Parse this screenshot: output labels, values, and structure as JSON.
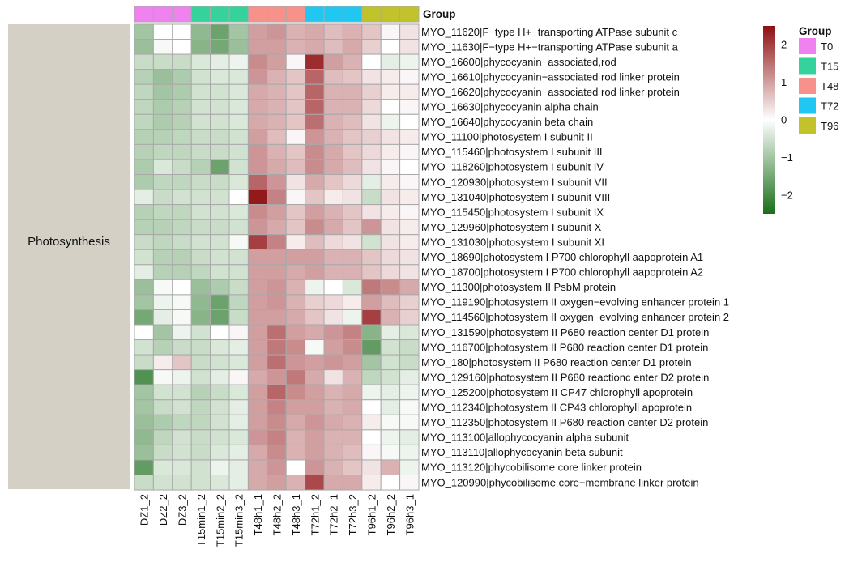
{
  "chart_data": {
    "type": "heatmap",
    "title": "",
    "xlabel": "",
    "ylabel": "",
    "row_group": "Photosynthesis",
    "group_header": "Group",
    "columns": [
      "DZ1_2",
      "DZ2_2",
      "DZ3_2",
      "T15min1_2",
      "T15min2_2",
      "T15min3_2",
      "T48h1_1",
      "T48h2_2",
      "T48h3_1",
      "T72h1_2",
      "T72h2_1",
      "T72h3_2",
      "T96h1_2",
      "T96h2_2",
      "T96h3_1"
    ],
    "column_groups": [
      "T0",
      "T0",
      "T0",
      "T15",
      "T15",
      "T15",
      "T48",
      "T48",
      "T48",
      "T72",
      "T72",
      "T72",
      "T96",
      "T96",
      "T96"
    ],
    "rows": [
      "MYO_11620|F−type H+−transporting ATPase subunit c",
      "MYO_11630|F−type H+−transporting ATPase subunit a",
      "MYO_16600|phycocyanin−associated,rod",
      "MYO_16610|phycocyanin−associated rod linker protein",
      "MYO_16620|phycocyanin−associated rod linker protein",
      "MYO_16630|phycocyanin alpha chain",
      "MYO_16640|phycocyanin beta chain",
      "MYO_11100|photosystem I subunit II",
      "MYO_115460|photosystem I subunit III",
      "MYO_118260|photosystem I subunit IV",
      "MYO_120930|photosystem I subunit VII",
      "MYO_131040|photosystem I subunit VIII",
      "MYO_115450|photosystem I subunit IX",
      "MYO_129960|photosystem I subunit X",
      "MYO_131030|photosystem I subunit XI",
      "MYO_18690|photosystem I P700 chlorophyll aapoprotein A1",
      "MYO_18700|photosystem I P700 chlorophyll aapoprotein A2",
      "MYO_11300|photosystem II PsbM protein",
      "MYO_119190|photosystem II oxygen−evolving enhancer protein 1",
      "MYO_114560|photosystem II oxygen−evolving enhancer protein 2",
      "MYO_131590|photosystem II P680 reaction center D1 protein",
      "MYO_116700|photosystem II P680 reaction center D1 protein",
      "MYO_180|photosystem II P680 reaction center D1 protein",
      "MYO_129160|photosystem II P680 reactionc enter D2  protein",
      "MYO_125200|photosystem II CP47 chlorophyll apoprotein",
      "MYO_112340|photosystem II CP43 chlorophyll apoprotein",
      "MYO_112350|photosystem II P680 reaction center D2 protein",
      "MYO_113100|allophycocyanin alpha subunit",
      "MYO_113110|allophycocyanin beta subunit",
      "MYO_113120|phycobilisome core linker protein",
      "MYO_120990|phycobilisome core−membrane linker protein"
    ],
    "values": [
      [
        -1.0,
        0.0,
        0.0,
        -1.2,
        -1.6,
        -1.0,
        1.0,
        1.1,
        0.8,
        0.9,
        0.7,
        0.8,
        0.6,
        0.1,
        0.3
      ],
      [
        -1.1,
        -0.1,
        0.0,
        -1.3,
        -1.5,
        -1.1,
        1.0,
        1.0,
        0.8,
        0.9,
        0.7,
        0.9,
        0.5,
        0.0,
        0.3
      ],
      [
        -0.6,
        -0.6,
        -0.6,
        -0.4,
        -0.3,
        -0.2,
        1.2,
        1.0,
        0.1,
        2.2,
        1.0,
        0.8,
        0.0,
        -0.3,
        -0.2
      ],
      [
        -0.8,
        -1.1,
        -0.9,
        -0.5,
        -0.4,
        -0.4,
        1.1,
        0.8,
        0.6,
        1.6,
        0.7,
        0.6,
        0.3,
        0.2,
        0.1
      ],
      [
        -0.7,
        -1.0,
        -0.9,
        -0.5,
        -0.5,
        -0.4,
        0.9,
        0.8,
        0.6,
        1.6,
        0.8,
        0.8,
        0.5,
        0.2,
        0.2
      ],
      [
        -0.7,
        -0.9,
        -0.8,
        -0.5,
        -0.5,
        -0.4,
        0.9,
        0.8,
        0.6,
        1.6,
        0.8,
        0.8,
        0.4,
        0.0,
        0.1
      ],
      [
        -0.7,
        -0.9,
        -0.8,
        -0.5,
        -0.5,
        -0.4,
        0.9,
        0.8,
        0.6,
        1.5,
        0.8,
        0.7,
        0.3,
        -0.2,
        0.0
      ],
      [
        -0.8,
        -0.8,
        -0.7,
        -0.6,
        -0.6,
        -0.5,
        1.0,
        0.7,
        0.1,
        1.1,
        0.8,
        0.6,
        0.5,
        0.3,
        0.2
      ],
      [
        -0.8,
        -0.7,
        -0.7,
        -0.6,
        -0.6,
        -0.5,
        1.1,
        0.8,
        0.6,
        1.2,
        0.9,
        0.6,
        0.4,
        0.2,
        0.1
      ],
      [
        -0.9,
        -0.4,
        -0.6,
        -0.8,
        -1.6,
        -0.5,
        1.1,
        0.9,
        0.7,
        1.2,
        0.9,
        0.7,
        0.3,
        0.1,
        0.0
      ],
      [
        -0.9,
        -0.7,
        -0.7,
        -0.6,
        -0.6,
        -0.4,
        1.6,
        1.1,
        0.3,
        0.9,
        0.6,
        0.4,
        -0.3,
        0.2,
        0.1
      ],
      [
        -0.3,
        -0.6,
        -0.5,
        -0.5,
        -0.5,
        0.0,
        2.4,
        1.3,
        0.1,
        0.6,
        0.2,
        0.3,
        -0.6,
        0.3,
        0.2
      ],
      [
        -0.8,
        -0.7,
        -0.7,
        -0.5,
        -0.5,
        -0.4,
        1.2,
        1.0,
        0.6,
        1.0,
        0.8,
        0.6,
        0.3,
        0.2,
        0.1
      ],
      [
        -0.8,
        -0.8,
        -0.7,
        -0.6,
        -0.6,
        -0.5,
        1.1,
        0.9,
        0.6,
        1.2,
        0.9,
        0.6,
        1.1,
        0.3,
        0.2
      ],
      [
        -0.6,
        -0.7,
        -0.6,
        -0.5,
        -0.5,
        -0.1,
        2.0,
        1.3,
        0.2,
        0.7,
        0.4,
        0.3,
        -0.5,
        0.3,
        0.2
      ],
      [
        -0.5,
        -0.8,
        -0.8,
        -0.6,
        -0.5,
        -0.5,
        1.0,
        1.0,
        1.0,
        1.0,
        0.8,
        0.8,
        0.6,
        0.4,
        0.3
      ],
      [
        -0.3,
        -0.8,
        -0.8,
        -0.7,
        -0.5,
        -0.5,
        1.0,
        1.0,
        0.9,
        1.0,
        0.8,
        0.8,
        0.6,
        0.4,
        0.3
      ],
      [
        -1.1,
        -0.1,
        0.0,
        -1.1,
        -0.9,
        -0.6,
        1.0,
        1.1,
        0.8,
        -0.2,
        0.0,
        -0.4,
        1.4,
        1.2,
        0.9
      ],
      [
        -1.0,
        -0.2,
        -0.1,
        -1.2,
        -1.6,
        -0.7,
        1.0,
        1.1,
        0.8,
        0.5,
        0.4,
        0.2,
        1.0,
        0.7,
        0.5
      ],
      [
        -1.5,
        -0.3,
        -0.1,
        -1.3,
        -1.6,
        -0.6,
        1.0,
        1.0,
        0.9,
        0.6,
        0.3,
        -0.2,
        2.0,
        0.8,
        0.5
      ],
      [
        0.0,
        -1.0,
        -0.2,
        -0.5,
        0.0,
        0.1,
        1.0,
        1.5,
        1.0,
        0.9,
        1.1,
        1.3,
        -1.3,
        -0.3,
        -0.4
      ],
      [
        -0.5,
        -0.8,
        -0.6,
        -0.6,
        -0.4,
        -0.3,
        1.0,
        1.4,
        1.2,
        -0.1,
        1.0,
        1.2,
        -1.7,
        -0.5,
        -0.6
      ],
      [
        -0.6,
        0.2,
        0.6,
        -0.6,
        -0.5,
        -0.4,
        1.0,
        1.5,
        1.1,
        1.0,
        1.1,
        1.0,
        -1.0,
        -0.5,
        -0.6
      ],
      [
        -1.9,
        -0.1,
        -0.2,
        -0.5,
        -0.3,
        0.1,
        0.9,
        1.1,
        1.4,
        0.9,
        0.3,
        0.8,
        -0.7,
        -0.5,
        -0.3
      ],
      [
        -1.0,
        -0.5,
        -0.5,
        -0.8,
        -0.6,
        -0.4,
        1.0,
        1.6,
        1.2,
        1.0,
        0.8,
        0.9,
        -0.2,
        -0.3,
        -0.2
      ],
      [
        -1.0,
        -0.6,
        -0.5,
        -0.7,
        -0.5,
        -0.3,
        1.0,
        1.3,
        1.0,
        1.0,
        0.8,
        0.9,
        0.0,
        -0.3,
        -0.1
      ],
      [
        -1.1,
        -0.9,
        -0.7,
        -0.7,
        -0.5,
        -0.3,
        1.0,
        1.2,
        0.9,
        1.1,
        0.9,
        0.8,
        0.2,
        -0.1,
        -0.1
      ],
      [
        -1.2,
        -0.7,
        -0.5,
        -0.6,
        -0.5,
        -0.4,
        1.1,
        1.3,
        0.8,
        1.0,
        0.8,
        0.8,
        0.0,
        -0.2,
        -0.3
      ],
      [
        -1.1,
        -0.6,
        -0.5,
        -0.6,
        -0.4,
        -0.3,
        0.9,
        1.2,
        0.8,
        1.0,
        0.8,
        0.7,
        0.1,
        -0.1,
        -0.2
      ],
      [
        -1.7,
        -0.4,
        -0.4,
        -0.5,
        -0.2,
        -0.3,
        0.9,
        1.1,
        0.0,
        1.1,
        0.8,
        0.6,
        0.3,
        0.8,
        -0.2
      ],
      [
        -0.6,
        -0.5,
        -0.5,
        -0.5,
        -0.4,
        -0.3,
        0.9,
        1.0,
        0.8,
        1.9,
        0.9,
        0.9,
        0.2,
        0.0,
        0.1
      ]
    ],
    "color_scale": {
      "domain": [
        -2.5,
        0,
        2.5
      ],
      "colors": [
        "#1a6e1a",
        "#ffffff",
        "#8e0f12"
      ],
      "ticks": [
        -2,
        -1,
        0,
        1,
        2
      ],
      "tick_labels": [
        "−2",
        "−1",
        "0",
        "1",
        "2"
      ]
    },
    "legend": {
      "title": "Group",
      "entries": [
        {
          "label": "T0",
          "color": "#ef82ef"
        },
        {
          "label": "T15",
          "color": "#36d29c"
        },
        {
          "label": "T48",
          "color": "#f69289"
        },
        {
          "label": "T72",
          "color": "#21c7f3"
        },
        {
          "label": "T96",
          "color": "#c2c22a"
        }
      ],
      "placement": "right"
    },
    "cell_border": "#a9a9a9",
    "group_bar_color": "#d5d0c6"
  }
}
